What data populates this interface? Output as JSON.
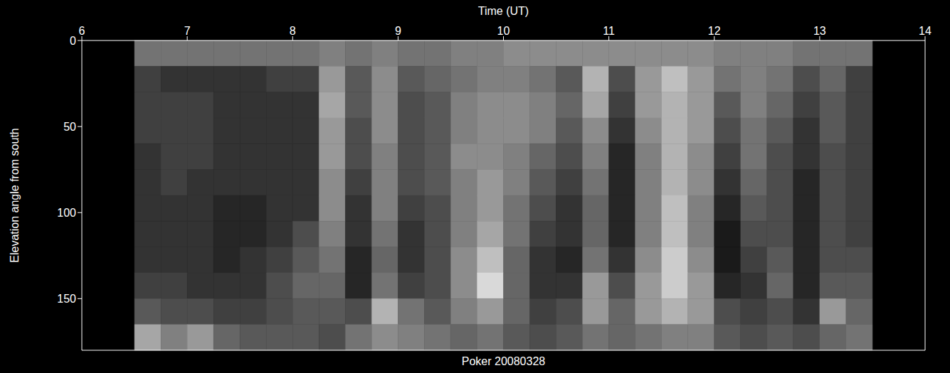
{
  "chart_data": {
    "type": "heatmap",
    "title": "Poker 20080328",
    "x_label": "Time (UT)",
    "y_label": "Elevation angle from south",
    "xlim": [
      6,
      14
    ],
    "xticks": [
      6,
      7,
      8,
      9,
      10,
      11,
      12,
      13,
      14
    ],
    "ylim": [
      0,
      180
    ],
    "yticks": [
      0,
      50,
      100,
      150
    ],
    "color": "#ffffff",
    "zlim": [
      0,
      1
    ],
    "x_edges": [
      6.5,
      6.75,
      7,
      7.25,
      7.5,
      7.75,
      8,
      8.25,
      8.5,
      8.75,
      9,
      9.25,
      9.5,
      9.75,
      10,
      10.25,
      10.5,
      10.75,
      11,
      11.25,
      11.5,
      11.75,
      12,
      12.25,
      12.5,
      12.75,
      13,
      13.25,
      13.5
    ],
    "y_edges": [
      0,
      15,
      30,
      45,
      60,
      75,
      90,
      105,
      120,
      135,
      150,
      165,
      180
    ],
    "values": [
      [
        0.45,
        0.45,
        0.45,
        0.45,
        0.45,
        0.45,
        0.45,
        0.5,
        0.45,
        0.5,
        0.45,
        0.45,
        0.5,
        0.5,
        0.55,
        0.55,
        0.55,
        0.55,
        0.55,
        0.55,
        0.55,
        0.55,
        0.5,
        0.5,
        0.5,
        0.45,
        0.45,
        0.45
      ],
      [
        0.25,
        0.2,
        0.2,
        0.2,
        0.2,
        0.25,
        0.25,
        0.6,
        0.35,
        0.55,
        0.35,
        0.4,
        0.45,
        0.5,
        0.5,
        0.45,
        0.35,
        0.7,
        0.3,
        0.6,
        0.75,
        0.6,
        0.45,
        0.5,
        0.45,
        0.3,
        0.4,
        0.25
      ],
      [
        0.25,
        0.25,
        0.25,
        0.2,
        0.2,
        0.2,
        0.2,
        0.65,
        0.35,
        0.55,
        0.3,
        0.35,
        0.5,
        0.55,
        0.55,
        0.5,
        0.4,
        0.65,
        0.25,
        0.6,
        0.7,
        0.6,
        0.35,
        0.5,
        0.4,
        0.25,
        0.35,
        0.25
      ],
      [
        0.25,
        0.25,
        0.25,
        0.2,
        0.2,
        0.2,
        0.2,
        0.6,
        0.3,
        0.55,
        0.3,
        0.35,
        0.5,
        0.55,
        0.55,
        0.5,
        0.35,
        0.55,
        0.2,
        0.55,
        0.7,
        0.6,
        0.3,
        0.45,
        0.35,
        0.2,
        0.35,
        0.25
      ],
      [
        0.2,
        0.25,
        0.25,
        0.2,
        0.2,
        0.2,
        0.2,
        0.6,
        0.3,
        0.5,
        0.3,
        0.35,
        0.55,
        0.55,
        0.5,
        0.4,
        0.3,
        0.5,
        0.15,
        0.5,
        0.7,
        0.55,
        0.25,
        0.45,
        0.3,
        0.2,
        0.3,
        0.25
      ],
      [
        0.2,
        0.25,
        0.2,
        0.2,
        0.2,
        0.2,
        0.2,
        0.55,
        0.25,
        0.5,
        0.3,
        0.35,
        0.5,
        0.6,
        0.5,
        0.35,
        0.25,
        0.45,
        0.15,
        0.5,
        0.7,
        0.55,
        0.2,
        0.4,
        0.3,
        0.15,
        0.3,
        0.25
      ],
      [
        0.2,
        0.2,
        0.2,
        0.15,
        0.15,
        0.2,
        0.2,
        0.55,
        0.2,
        0.5,
        0.25,
        0.3,
        0.5,
        0.6,
        0.45,
        0.3,
        0.2,
        0.4,
        0.15,
        0.5,
        0.75,
        0.5,
        0.15,
        0.35,
        0.3,
        0.15,
        0.3,
        0.25
      ],
      [
        0.2,
        0.2,
        0.2,
        0.15,
        0.15,
        0.2,
        0.3,
        0.5,
        0.2,
        0.45,
        0.2,
        0.3,
        0.5,
        0.65,
        0.45,
        0.25,
        0.2,
        0.4,
        0.15,
        0.5,
        0.75,
        0.5,
        0.1,
        0.3,
        0.3,
        0.15,
        0.3,
        0.25
      ],
      [
        0.2,
        0.2,
        0.2,
        0.15,
        0.2,
        0.25,
        0.35,
        0.45,
        0.15,
        0.4,
        0.2,
        0.3,
        0.55,
        0.75,
        0.4,
        0.2,
        0.15,
        0.45,
        0.2,
        0.55,
        0.8,
        0.55,
        0.1,
        0.25,
        0.35,
        0.15,
        0.3,
        0.3
      ],
      [
        0.25,
        0.25,
        0.2,
        0.2,
        0.2,
        0.3,
        0.4,
        0.4,
        0.15,
        0.45,
        0.25,
        0.3,
        0.55,
        0.85,
        0.4,
        0.2,
        0.2,
        0.6,
        0.3,
        0.6,
        0.8,
        0.6,
        0.15,
        0.2,
        0.4,
        0.15,
        0.35,
        0.35
      ],
      [
        0.35,
        0.3,
        0.3,
        0.25,
        0.25,
        0.3,
        0.35,
        0.35,
        0.3,
        0.7,
        0.45,
        0.35,
        0.5,
        0.6,
        0.4,
        0.25,
        0.3,
        0.6,
        0.4,
        0.6,
        0.7,
        0.6,
        0.3,
        0.25,
        0.3,
        0.2,
        0.6,
        0.4
      ],
      [
        0.65,
        0.5,
        0.6,
        0.4,
        0.35,
        0.35,
        0.35,
        0.3,
        0.45,
        0.55,
        0.5,
        0.45,
        0.4,
        0.45,
        0.35,
        0.3,
        0.35,
        0.45,
        0.4,
        0.45,
        0.5,
        0.5,
        0.35,
        0.3,
        0.35,
        0.3,
        0.4,
        0.45
      ]
    ]
  }
}
